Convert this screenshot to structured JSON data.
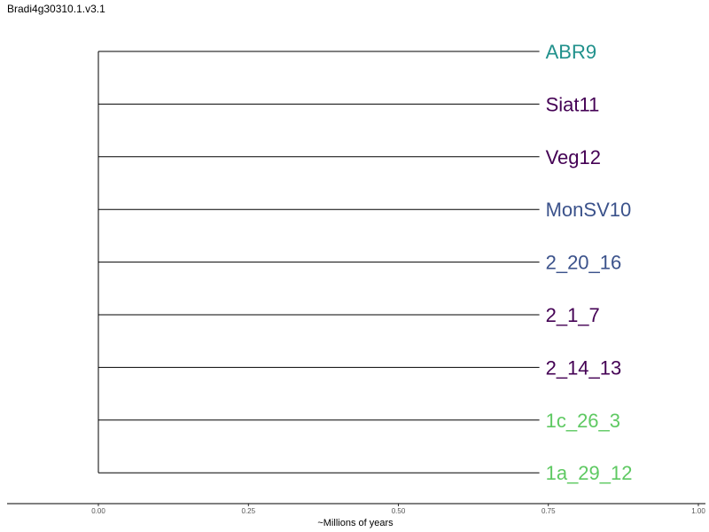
{
  "title": "Bradi4g30310.1.v3.1",
  "chart_data": {
    "type": "tree",
    "xlabel": "~Millions of years",
    "xlim": [
      0.0,
      1.0
    ],
    "xticks": [
      "0.00",
      "0.25",
      "0.50",
      "0.75",
      "1.00"
    ],
    "root_x": 0.0,
    "tips": [
      {
        "label": "ABR9",
        "x": 0.735,
        "color": "#21918c"
      },
      {
        "label": "Siat11",
        "x": 0.735,
        "color": "#440154"
      },
      {
        "label": "Veg12",
        "x": 0.735,
        "color": "#440154"
      },
      {
        "label": "MonSV10",
        "x": 0.735,
        "color": "#3b528b"
      },
      {
        "label": "2_20_16",
        "x": 0.735,
        "color": "#3b528b"
      },
      {
        "label": "2_1_7",
        "x": 0.735,
        "color": "#440154"
      },
      {
        "label": "2_14_13",
        "x": 0.735,
        "color": "#440154"
      },
      {
        "label": "1c_26_3",
        "x": 0.735,
        "color": "#5ec962"
      },
      {
        "label": "1a_29_12",
        "x": 0.735,
        "color": "#5ec962"
      }
    ]
  }
}
